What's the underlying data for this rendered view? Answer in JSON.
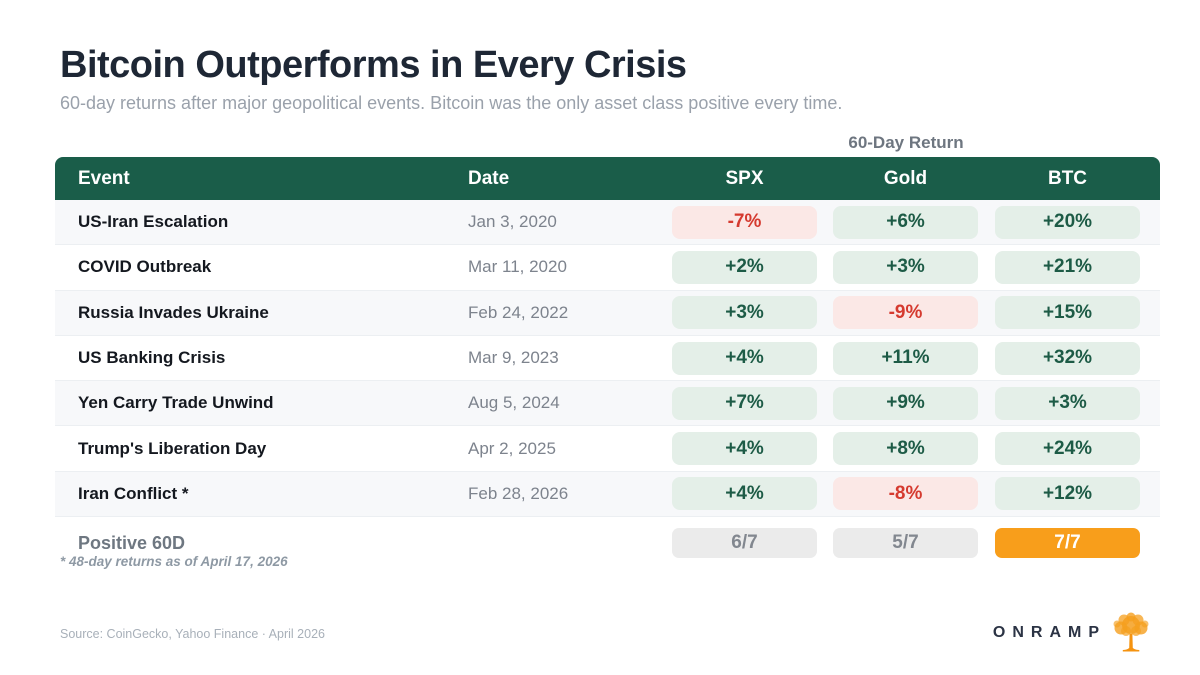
{
  "header": {
    "title": "Bitcoin Outperforms in Every Crisis",
    "subtitle": "60-day returns after major geopolitical events. Bitcoin was the only asset class positive every time."
  },
  "table": {
    "group_label": "60-Day Return",
    "columns": [
      "Event",
      "Date",
      "SPX",
      "Gold",
      "BTC"
    ],
    "rows": [
      {
        "event": "US-Iran Escalation",
        "date": "Jan 3, 2020",
        "returns": [
          {
            "value": "-7%",
            "tone": "negative"
          },
          {
            "value": "+6%",
            "tone": "positive"
          },
          {
            "value": "+20%",
            "tone": "positive"
          }
        ]
      },
      {
        "event": "COVID Outbreak",
        "date": "Mar 11, 2020",
        "returns": [
          {
            "value": "+2%",
            "tone": "positive"
          },
          {
            "value": "+3%",
            "tone": "positive"
          },
          {
            "value": "+21%",
            "tone": "positive"
          }
        ]
      },
      {
        "event": "Russia Invades Ukraine",
        "date": "Feb 24, 2022",
        "returns": [
          {
            "value": "+3%",
            "tone": "positive"
          },
          {
            "value": "-9%",
            "tone": "negative"
          },
          {
            "value": "+15%",
            "tone": "positive"
          }
        ]
      },
      {
        "event": "US Banking Crisis",
        "date": "Mar 9, 2023",
        "returns": [
          {
            "value": "+4%",
            "tone": "positive"
          },
          {
            "value": "+11%",
            "tone": "positive"
          },
          {
            "value": "+32%",
            "tone": "positive"
          }
        ]
      },
      {
        "event": "Yen Carry Trade Unwind",
        "date": "Aug 5, 2024",
        "returns": [
          {
            "value": "+7%",
            "tone": "positive"
          },
          {
            "value": "+9%",
            "tone": "positive"
          },
          {
            "value": "+3%",
            "tone": "positive"
          }
        ]
      },
      {
        "event": "Trump's Liberation Day",
        "date": "Apr 2, 2025",
        "returns": [
          {
            "value": "+4%",
            "tone": "positive"
          },
          {
            "value": "+8%",
            "tone": "positive"
          },
          {
            "value": "+24%",
            "tone": "positive"
          }
        ]
      },
      {
        "event": "Iran Conflict *",
        "date": "Feb 28, 2026",
        "returns": [
          {
            "value": "+4%",
            "tone": "positive"
          },
          {
            "value": "-8%",
            "tone": "negative"
          },
          {
            "value": "+12%",
            "tone": "positive"
          }
        ]
      }
    ],
    "summary": {
      "label": "Positive 60D",
      "cells": [
        {
          "value": "6/7",
          "tone": "neutral"
        },
        {
          "value": "5/7",
          "tone": "neutral"
        },
        {
          "value": "7/7",
          "tone": "highlight"
        }
      ]
    },
    "footnote": "* 48-day returns as of April 17, 2026"
  },
  "footer": {
    "source": "Source: CoinGecko, Yahoo Finance · April 2026",
    "brand": "ONRAMP",
    "brand_icon": "tree-icon"
  },
  "colors": {
    "header_green": "#1a5d49",
    "positive_bg": "#e4efe8",
    "positive_text": "#1d5b46",
    "negative_bg": "#fbe8e6",
    "negative_text": "#d53a2f",
    "neutral_bg": "#ebebeb",
    "neutral_text": "#82878f",
    "highlight_orange": "#f89e1b",
    "row_stripe": "#f7f8fa",
    "title_text": "#1e2735"
  },
  "chart_data": {
    "type": "table",
    "title": "Bitcoin Outperforms in Every Crisis",
    "subtitle": "60-day returns after major geopolitical events. Bitcoin was the only asset class positive every time.",
    "column_group_label": "60-Day Return",
    "columns": [
      "Event",
      "Date",
      "SPX",
      "Gold",
      "BTC"
    ],
    "rows": [
      [
        "US-Iran Escalation",
        "Jan 3, 2020",
        "-7%",
        "+6%",
        "+20%"
      ],
      [
        "COVID Outbreak",
        "Mar 11, 2020",
        "+2%",
        "+3%",
        "+21%"
      ],
      [
        "Russia Invades Ukraine",
        "Feb 24, 2022",
        "+3%",
        "-9%",
        "+15%"
      ],
      [
        "US Banking Crisis",
        "Mar 9, 2023",
        "+4%",
        "+11%",
        "+32%"
      ],
      [
        "Yen Carry Trade Unwind",
        "Aug 5, 2024",
        "+7%",
        "+9%",
        "+3%"
      ],
      [
        "Trump's Liberation Day",
        "Apr 2, 2025",
        "+4%",
        "+8%",
        "+24%"
      ],
      [
        "Iran Conflict *",
        "Feb 28, 2026",
        "+4%",
        "-8%",
        "+12%"
      ]
    ],
    "summary_row": [
      "Positive 60D",
      "",
      "6/7",
      "5/7",
      "7/7"
    ],
    "footnote": "* 48-day returns as of April 17, 2026",
    "source": "Source: CoinGecko, Yahoo Finance · April 2026"
  }
}
